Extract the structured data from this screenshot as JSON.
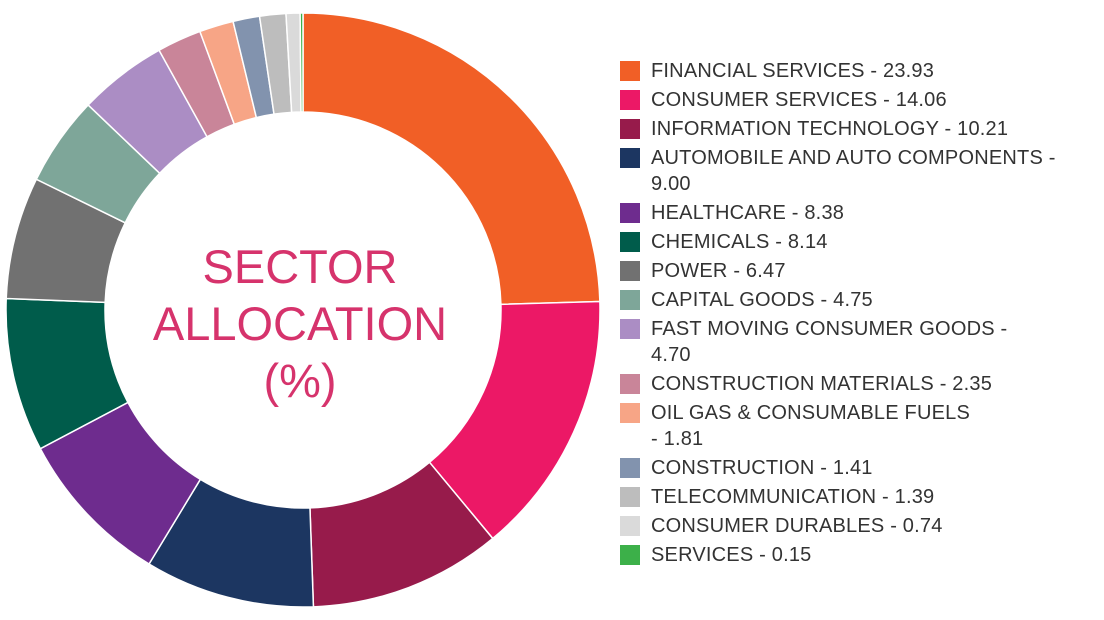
{
  "chart_data": {
    "type": "pie",
    "title_lines": [
      "SECTOR",
      "ALLOCATION",
      "(%)"
    ],
    "slices": [
      {
        "name": "FINANCIAL SERVICES",
        "value": 23.93,
        "color": "#f15f26",
        "label_lines": [
          "FINANCIAL SERVICES - 23.93"
        ]
      },
      {
        "name": "CONSUMER SERVICES",
        "value": 14.06,
        "color": "#ec1866",
        "label_lines": [
          "CONSUMER SERVICES - 14.06"
        ]
      },
      {
        "name": "INFORMATION TECHNOLOGY",
        "value": 10.21,
        "color": "#971b4b",
        "label_lines": [
          "INFORMATION TECHNOLOGY - 10.21"
        ]
      },
      {
        "name": "AUTOMOBILE AND AUTO COMPONENTS",
        "value": 9.0,
        "color": "#1c3661",
        "label_lines": [
          "AUTOMOBILE AND AUTO COMPONENTS -",
          "9.00"
        ]
      },
      {
        "name": "HEALTHCARE",
        "value": 8.38,
        "color": "#6e2c8e",
        "label_lines": [
          "HEALTHCARE - 8.38"
        ]
      },
      {
        "name": "CHEMICALS",
        "value": 8.14,
        "color": "#005c4b",
        "label_lines": [
          "CHEMICALS - 8.14"
        ]
      },
      {
        "name": "POWER",
        "value": 6.47,
        "color": "#717171",
        "label_lines": [
          "POWER - 6.47"
        ]
      },
      {
        "name": "CAPITAL GOODS",
        "value": 4.75,
        "color": "#7ea699",
        "label_lines": [
          "CAPITAL GOODS - 4.75"
        ]
      },
      {
        "name": "FAST MOVING CONSUMER GOODS",
        "value": 4.7,
        "color": "#ab8dc4",
        "label_lines": [
          "FAST MOVING CONSUMER GOODS -",
          "4.70"
        ]
      },
      {
        "name": "CONSTRUCTION MATERIALS",
        "value": 2.35,
        "color": "#c98599",
        "label_lines": [
          "CONSTRUCTION MATERIALS - 2.35"
        ]
      },
      {
        "name": "OIL GAS & CONSUMABLE FUELS",
        "value": 1.81,
        "color": "#f7a586",
        "label_lines": [
          "OIL GAS & CONSUMABLE FUELS",
          " - 1.81"
        ]
      },
      {
        "name": "CONSTRUCTION",
        "value": 1.41,
        "color": "#8293ae",
        "label_lines": [
          "CONSTRUCTION - 1.41"
        ]
      },
      {
        "name": "TELECOMMUNICATION",
        "value": 1.39,
        "color": "#bdbdbd",
        "label_lines": [
          "TELECOMMUNICATION - 1.39"
        ]
      },
      {
        "name": "CONSUMER DURABLES",
        "value": 0.74,
        "color": "#dadada",
        "label_lines": [
          "CONSUMER DURABLES - 0.74"
        ]
      },
      {
        "name": "SERVICES",
        "value": 0.15,
        "color": "#3cb049",
        "label_lines": [
          "SERVICES - 0.15"
        ]
      }
    ],
    "legend_position": "right",
    "donut": true
  }
}
